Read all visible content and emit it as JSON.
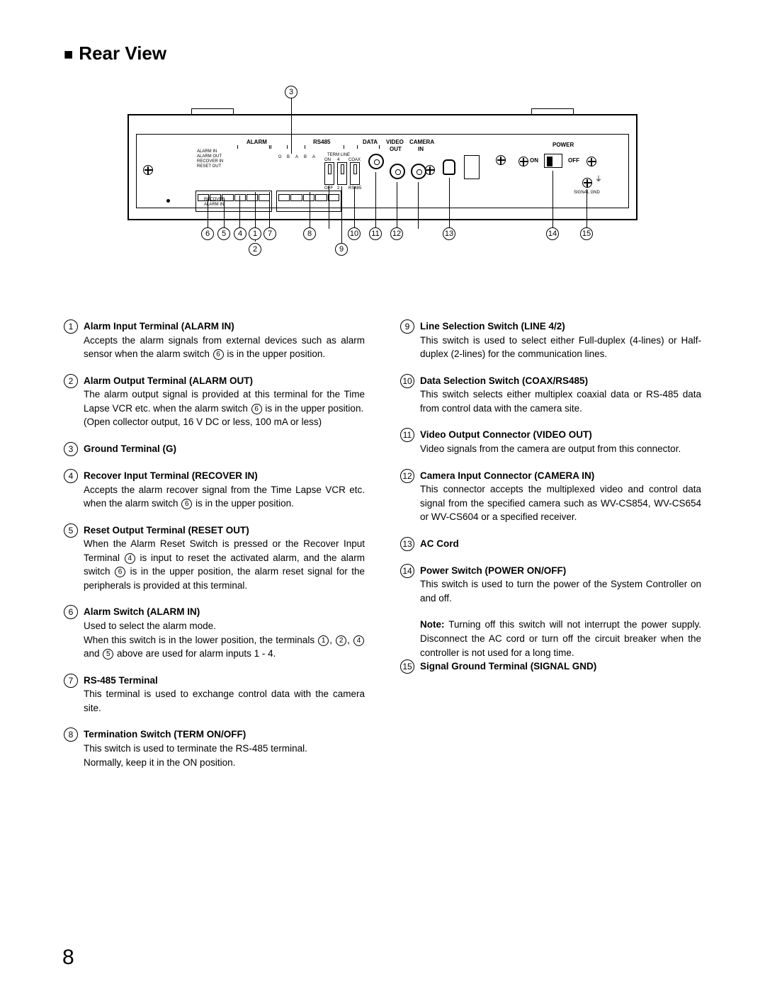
{
  "title": "Rear View",
  "page_number": "8",
  "diagram": {
    "panel_labels": {
      "alarm": "ALARM",
      "rs485": "RS485",
      "data_out": "DATA",
      "video_out": "VIDEO",
      "camera_in": "CAMERA",
      "out": "OUT",
      "in": "IN",
      "power": "POWER",
      "on": "ON",
      "off": "OFF",
      "signal_gnd": "SIGNAL GND",
      "term_line": "TERM LINE",
      "alarm_in_t": "ALARM IN",
      "alarm_out_t": "ALARM OUT",
      "recover_in_t": "RECOVER IN",
      "reset_out_t": "RESET OUT",
      "alarm_in_b": "ALARM IN",
      "recover_t": "RECOVER",
      "g": "G",
      "b": "B",
      "a": "A",
      "four": "4",
      "two": "2",
      "coax": "COAX",
      "rs485_b": "RS485",
      "on_t": "ON",
      "off_b": "OFF"
    },
    "callouts": [
      "1",
      "2",
      "3",
      "4",
      "5",
      "6",
      "7",
      "8",
      "9",
      "10",
      "11",
      "12",
      "13",
      "14",
      "15"
    ]
  },
  "items_left": [
    {
      "n": "1",
      "title": "Alarm Input Terminal (ALARM IN)",
      "body": "Accepts the alarm signals from external devices such as alarm sensor when the alarm switch {6} is in the upper position."
    },
    {
      "n": "2",
      "title": "Alarm Output Terminal (ALARM OUT)",
      "body": "The alarm output signal is provided at this terminal for the Time Lapse VCR etc. when the alarm switch {6} is in the upper position.\n(Open collector output, 16 V DC or less, 100 mA or less)"
    },
    {
      "n": "3",
      "title": "Ground Terminal (G)",
      "body": ""
    },
    {
      "n": "4",
      "title": "Recover Input Terminal (RECOVER IN)",
      "body": "Accepts the alarm recover signal from the Time Lapse VCR etc. when the alarm switch {6} is in the upper position."
    },
    {
      "n": "5",
      "title": "Reset Output Terminal (RESET OUT)",
      "body": "When the Alarm Reset Switch is pressed or the Recover Input Terminal {4} is input to reset the activated alarm, and the alarm switch {6} is in the upper position, the alarm reset signal for the peripherals is provided at this terminal."
    },
    {
      "n": "6",
      "title": "Alarm Switch (ALARM IN)",
      "body": "Used to select the alarm mode.\nWhen this switch is in the lower position, the terminals {1}, {2}, {4} and {5} above are used for alarm inputs 1 - 4."
    },
    {
      "n": "7",
      "title": "RS-485 Terminal",
      "body": "This terminal is used to exchange control data with the camera site."
    },
    {
      "n": "8",
      "title": "Termination Switch (TERM ON/OFF)",
      "body": "This switch is used to terminate the RS-485 terminal.\nNormally, keep it in the ON position."
    }
  ],
  "items_right": [
    {
      "n": "9",
      "title": "Line Selection Switch (LINE 4/2)",
      "body": "This switch is used to select either Full-duplex (4-lines) or Half-duplex (2-lines) for the communication lines."
    },
    {
      "n": "10",
      "title": "Data Selection Switch (COAX/RS485)",
      "body": "This switch selects either multiplex coaxial data or RS-485 data from control data with the camera site."
    },
    {
      "n": "11",
      "title": "Video Output Connector (VIDEO OUT)",
      "body": "Video signals from the camera are output from this connector."
    },
    {
      "n": "12",
      "title": "Camera Input Connector (CAMERA IN)",
      "body": "This connector accepts the multiplexed video and control data signal from the specified camera such as WV-CS854, WV-CS654 or WV-CS604 or a specified receiver."
    },
    {
      "n": "13",
      "title": "AC Cord",
      "body": ""
    },
    {
      "n": "14",
      "title": "Power Switch (POWER ON/OFF)",
      "body": "This switch is used to turn the power of the System Controller on and off.",
      "note": "Note: Turning off this switch will not interrupt the power supply. Disconnect the AC cord or turn off the circuit breaker when the controller is not used for a long time."
    },
    {
      "n": "15",
      "title": "Signal Ground Terminal (SIGNAL GND)",
      "body": ""
    }
  ]
}
